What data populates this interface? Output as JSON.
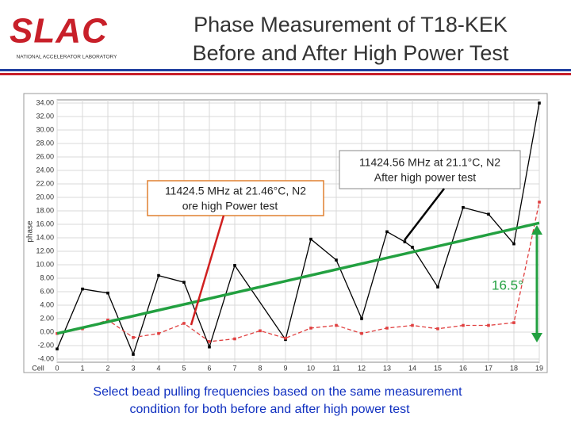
{
  "logo": {
    "name": "SLAC",
    "subtitle": "NATIONAL ACCELERATOR LABORATORY"
  },
  "chart_data": {
    "type": "line",
    "title": [
      "Phase Measurement of T18-KEK",
      "Before and After High Power Test"
    ],
    "xlabel": "Cell",
    "ylabel": "phase",
    "xlim": [
      0,
      19
    ],
    "ylim": [
      -4,
      34
    ],
    "xticks": [
      0,
      1,
      2,
      3,
      4,
      5,
      6,
      7,
      8,
      9,
      10,
      11,
      12,
      13,
      14,
      15,
      16,
      17,
      18,
      19
    ],
    "yticks": [
      {
        "value": -4,
        "label": "-4.00"
      },
      {
        "value": -2,
        "label": "-2.00"
      },
      {
        "value": 0,
        "label": "0.00"
      },
      {
        "value": 2,
        "label": "2.00"
      },
      {
        "value": 4,
        "label": "4.00"
      },
      {
        "value": 6,
        "label": "6.00"
      },
      {
        "value": 8,
        "label": "8.00"
      },
      {
        "value": 10,
        "label": "10.00"
      },
      {
        "value": 12,
        "label": "12.00"
      },
      {
        "value": 14,
        "label": "14.00"
      },
      {
        "value": 16,
        "label": "16.00"
      },
      {
        "value": 18,
        "label": "18.00"
      },
      {
        "value": 20,
        "label": "20.00"
      },
      {
        "value": 22,
        "label": "22.00"
      },
      {
        "value": 24,
        "label": "24.00"
      },
      {
        "value": 26,
        "label": "26.00"
      },
      {
        "value": 28,
        "label": "28.00"
      },
      {
        "value": 30,
        "label": "30.00"
      },
      {
        "value": 32,
        "label": "32.00"
      },
      {
        "value": 34,
        "label": "34.00"
      }
    ],
    "grid": true,
    "series": [
      {
        "color": "#000000",
        "style": "solid",
        "x": [
          0,
          1,
          2,
          3,
          4,
          5,
          6,
          7,
          9,
          10,
          11,
          12,
          13,
          13.7,
          14,
          15,
          16,
          17,
          18,
          19
        ],
        "values": [
          -2.5,
          6.4,
          5.8,
          -3.3,
          8.4,
          7.4,
          -2.2,
          9.9,
          -1.1,
          13.8,
          10.7,
          2.0,
          14.9,
          13.4,
          12.6,
          6.7,
          18.5,
          17.5,
          13.1,
          34
        ]
      },
      {
        "color": "#e04040",
        "style": "dashed",
        "x": [
          0,
          1,
          2,
          3,
          4,
          5,
          6,
          7,
          8,
          9,
          10,
          11,
          12,
          13,
          14,
          15,
          16,
          17,
          18,
          19
        ],
        "values": [
          -0.2,
          0.5,
          1.8,
          -0.8,
          -0.2,
          1.3,
          -1.4,
          -1.0,
          0.2,
          -0.9,
          0.6,
          1.0,
          -0.2,
          0.6,
          1.0,
          0.5,
          1.0,
          1.0,
          1.4,
          19.3
        ]
      },
      {
        "color": "#22a040",
        "style": "trend",
        "x": [
          0,
          19
        ],
        "values": [
          -0.2,
          16.2
        ]
      }
    ],
    "annotations": [
      {
        "text": [
          "11424.5 MHz at 21.46°C, N2",
          "ore high Power test"
        ]
      },
      {
        "text": [
          "11424.56 MHz at 21.1°C, N2",
          "After high power test"
        ]
      },
      {
        "text": "16.5°"
      }
    ]
  },
  "caption": [
    "Select bead pulling frequencies based on the same measurement",
    "condition for both before and after high power test"
  ]
}
